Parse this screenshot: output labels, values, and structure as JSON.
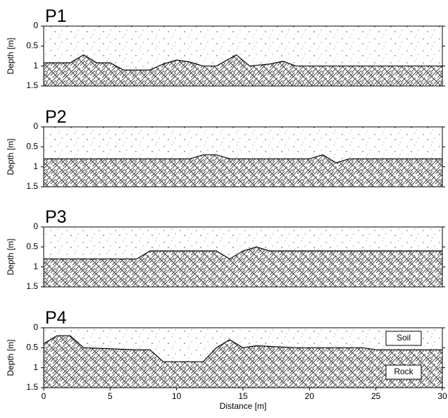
{
  "chart_data": [
    {
      "type": "area",
      "title": "P1",
      "ylabel": "Depth [m]",
      "xlim": [
        0,
        30
      ],
      "ylim": [
        0,
        1.5
      ],
      "yticks": [
        0,
        0.5,
        1,
        1.5
      ],
      "y_inverted": true,
      "x": [
        0,
        2,
        3,
        4,
        5,
        6,
        8,
        9,
        10,
        11,
        12,
        13,
        14.5,
        15.5,
        17,
        18,
        19,
        30
      ],
      "values": [
        0.92,
        0.92,
        0.72,
        0.92,
        0.92,
        1.1,
        1.1,
        0.95,
        0.85,
        0.9,
        1.0,
        1.0,
        0.72,
        1.0,
        0.95,
        0.88,
        1.0,
        1.0
      ]
    },
    {
      "type": "area",
      "title": "P2",
      "ylabel": "Depth [m]",
      "xlim": [
        0,
        30
      ],
      "ylim": [
        0,
        1.5
      ],
      "yticks": [
        0,
        0.5,
        1,
        1.5
      ],
      "y_inverted": true,
      "x": [
        0,
        11,
        12,
        13,
        14,
        20,
        21,
        22,
        23,
        30
      ],
      "values": [
        0.8,
        0.8,
        0.7,
        0.7,
        0.8,
        0.8,
        0.7,
        0.9,
        0.8,
        0.8
      ]
    },
    {
      "type": "area",
      "title": "P3",
      "ylabel": "Depth [m]",
      "xlim": [
        0,
        30
      ],
      "ylim": [
        0,
        1.5
      ],
      "yticks": [
        0,
        0.5,
        1,
        1.5
      ],
      "y_inverted": true,
      "x": [
        0,
        7,
        8,
        13,
        14,
        15,
        16,
        17,
        30
      ],
      "values": [
        0.8,
        0.8,
        0.6,
        0.6,
        0.8,
        0.6,
        0.5,
        0.6,
        0.6
      ]
    },
    {
      "type": "area",
      "title": "P4",
      "ylabel": "Depth [m]",
      "xlabel": "Distance [m]",
      "xlim": [
        0,
        30
      ],
      "ylim": [
        0,
        1.5
      ],
      "yticks": [
        0,
        0.5,
        1,
        1.5
      ],
      "xticks": [
        0,
        5,
        10,
        15,
        20,
        25,
        30
      ],
      "y_inverted": true,
      "legend": [
        "Soil",
        "Rock"
      ],
      "x": [
        0,
        1,
        2,
        3,
        7,
        8,
        9,
        12,
        13,
        14,
        15,
        16,
        19,
        24,
        25,
        30
      ],
      "values": [
        0.4,
        0.2,
        0.2,
        0.5,
        0.55,
        0.55,
        0.85,
        0.85,
        0.5,
        0.3,
        0.5,
        0.45,
        0.5,
        0.5,
        0.55,
        0.55
      ]
    }
  ]
}
